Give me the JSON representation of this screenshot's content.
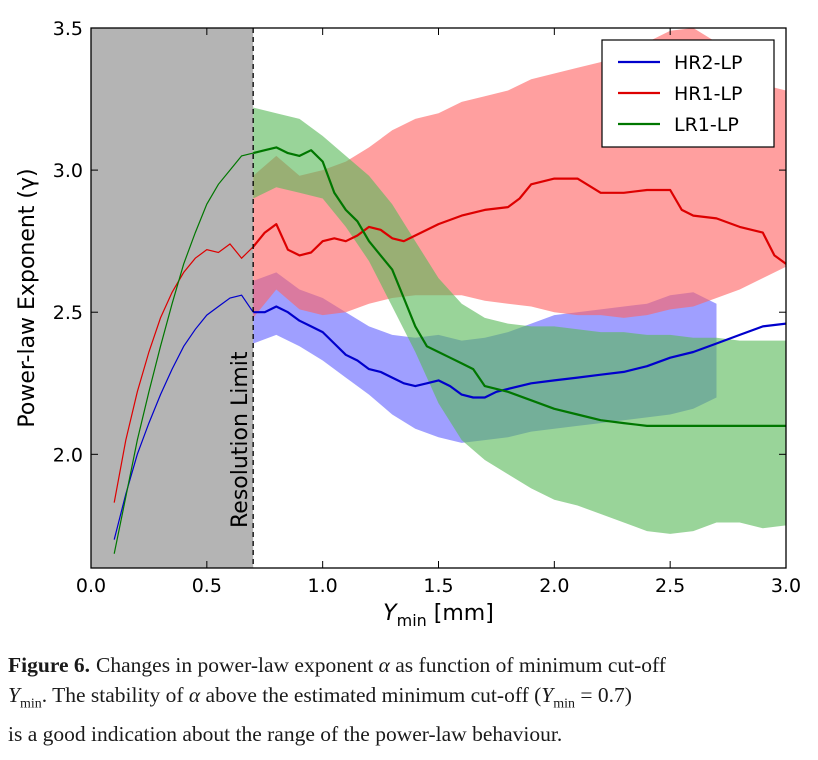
{
  "chart_data": {
    "type": "line",
    "xlabel": "Y",
    "xlabel_sub": "min",
    "xlabel_unit": "[mm]",
    "ylabel": "Power-law Exponent (γ)",
    "xlim": [
      0.0,
      3.0
    ],
    "ylim": [
      1.6,
      3.5
    ],
    "xticks": [
      "0.0",
      "0.5",
      "1.0",
      "1.5",
      "2.0",
      "2.5",
      "3.0"
    ],
    "yticks": [
      "2.0",
      "2.5",
      "3.0",
      "3.5"
    ],
    "legend_position": "top-right",
    "resolution_limit": {
      "x": 0.7,
      "label": "Resolution Limit"
    },
    "series": [
      {
        "name": "HR2-LP",
        "color": "#0000cc",
        "band_color": "#6464ff",
        "x": [
          0.1,
          0.15,
          0.2,
          0.25,
          0.3,
          0.35,
          0.4,
          0.45,
          0.5,
          0.55,
          0.6,
          0.65,
          0.7,
          0.75,
          0.8,
          0.85,
          0.9,
          0.95,
          1.0,
          1.05,
          1.1,
          1.15,
          1.2,
          1.25,
          1.3,
          1.35,
          1.4,
          1.45,
          1.5,
          1.55,
          1.6,
          1.65,
          1.7,
          1.75,
          1.8,
          1.9,
          2.0,
          2.1,
          2.2,
          2.3,
          2.4,
          2.5,
          2.6,
          2.7,
          2.8,
          2.9,
          3.0
        ],
        "y": [
          1.7,
          1.86,
          2.0,
          2.11,
          2.21,
          2.3,
          2.38,
          2.44,
          2.49,
          2.52,
          2.55,
          2.56,
          2.5,
          2.5,
          2.52,
          2.5,
          2.47,
          2.45,
          2.43,
          2.39,
          2.35,
          2.33,
          2.3,
          2.29,
          2.27,
          2.25,
          2.24,
          2.25,
          2.26,
          2.24,
          2.21,
          2.2,
          2.2,
          2.22,
          2.23,
          2.25,
          2.26,
          2.27,
          2.28,
          2.29,
          2.31,
          2.34,
          2.36,
          2.39,
          2.42,
          2.45,
          2.46
        ],
        "band_x": [
          0.7,
          0.8,
          0.9,
          1.0,
          1.1,
          1.2,
          1.3,
          1.4,
          1.5,
          1.6,
          1.7,
          1.8,
          1.9,
          2.0,
          2.1,
          2.2,
          2.3,
          2.4,
          2.5,
          2.6,
          2.7
        ],
        "band_upper": [
          2.61,
          2.64,
          2.58,
          2.55,
          2.5,
          2.45,
          2.42,
          2.41,
          2.42,
          2.4,
          2.41,
          2.43,
          2.46,
          2.49,
          2.5,
          2.51,
          2.52,
          2.53,
          2.56,
          2.57,
          2.53
        ],
        "band_lower": [
          2.39,
          2.42,
          2.38,
          2.33,
          2.27,
          2.21,
          2.14,
          2.09,
          2.06,
          2.04,
          2.05,
          2.06,
          2.08,
          2.09,
          2.1,
          2.11,
          2.12,
          2.13,
          2.14,
          2.16,
          2.2
        ]
      },
      {
        "name": "HR1-LP",
        "color": "#dd0000",
        "band_color": "#ff6464",
        "x": [
          0.1,
          0.15,
          0.2,
          0.25,
          0.3,
          0.35,
          0.4,
          0.45,
          0.5,
          0.55,
          0.6,
          0.65,
          0.7,
          0.75,
          0.8,
          0.85,
          0.9,
          0.95,
          1.0,
          1.05,
          1.1,
          1.15,
          1.2,
          1.25,
          1.3,
          1.35,
          1.4,
          1.5,
          1.6,
          1.7,
          1.8,
          1.85,
          1.9,
          2.0,
          2.1,
          2.2,
          2.3,
          2.4,
          2.5,
          2.55,
          2.6,
          2.7,
          2.8,
          2.9,
          2.95,
          3.0
        ],
        "y": [
          1.83,
          2.05,
          2.22,
          2.36,
          2.48,
          2.57,
          2.64,
          2.69,
          2.72,
          2.71,
          2.74,
          2.69,
          2.73,
          2.78,
          2.81,
          2.72,
          2.7,
          2.71,
          2.75,
          2.76,
          2.75,
          2.77,
          2.8,
          2.79,
          2.76,
          2.75,
          2.77,
          2.81,
          2.84,
          2.86,
          2.87,
          2.9,
          2.95,
          2.97,
          2.97,
          2.92,
          2.92,
          2.93,
          2.93,
          2.86,
          2.84,
          2.83,
          2.8,
          2.78,
          2.7,
          2.67
        ],
        "band_x": [
          0.7,
          0.8,
          0.9,
          1.0,
          1.1,
          1.2,
          1.3,
          1.4,
          1.5,
          1.6,
          1.7,
          1.8,
          1.9,
          2.0,
          2.1,
          2.2,
          2.3,
          2.4,
          2.5,
          2.6,
          2.7,
          2.8,
          2.9,
          3.0
        ],
        "band_upper": [
          2.98,
          3.05,
          2.98,
          3.0,
          3.03,
          3.08,
          3.14,
          3.18,
          3.2,
          3.24,
          3.26,
          3.28,
          3.32,
          3.34,
          3.36,
          3.38,
          3.42,
          3.45,
          3.49,
          3.5,
          3.45,
          3.36,
          3.3,
          3.28
        ],
        "band_lower": [
          2.48,
          2.58,
          2.51,
          2.49,
          2.5,
          2.53,
          2.55,
          2.56,
          2.56,
          2.56,
          2.54,
          2.53,
          2.52,
          2.5,
          2.49,
          2.49,
          2.48,
          2.49,
          2.51,
          2.52,
          2.55,
          2.58,
          2.62,
          2.66
        ]
      },
      {
        "name": "LR1-LP",
        "color": "#007700",
        "band_color": "#5aba5a",
        "x": [
          0.1,
          0.15,
          0.2,
          0.25,
          0.3,
          0.35,
          0.4,
          0.45,
          0.5,
          0.55,
          0.6,
          0.65,
          0.7,
          0.75,
          0.8,
          0.85,
          0.9,
          0.95,
          1.0,
          1.05,
          1.1,
          1.15,
          1.2,
          1.25,
          1.3,
          1.35,
          1.4,
          1.45,
          1.5,
          1.55,
          1.6,
          1.65,
          1.7,
          1.8,
          1.9,
          2.0,
          2.1,
          2.2,
          2.3,
          2.4,
          2.5,
          2.6,
          2.7,
          2.8,
          2.9,
          3.0
        ],
        "y": [
          1.65,
          1.85,
          2.05,
          2.22,
          2.38,
          2.53,
          2.67,
          2.78,
          2.88,
          2.95,
          3.0,
          3.05,
          3.06,
          3.07,
          3.08,
          3.06,
          3.05,
          3.07,
          3.03,
          2.92,
          2.86,
          2.82,
          2.75,
          2.7,
          2.65,
          2.55,
          2.45,
          2.38,
          2.36,
          2.34,
          2.32,
          2.3,
          2.24,
          2.22,
          2.19,
          2.16,
          2.14,
          2.12,
          2.11,
          2.1,
          2.1,
          2.1,
          2.1,
          2.1,
          2.1,
          2.1
        ],
        "band_x": [
          0.7,
          0.8,
          0.9,
          1.0,
          1.1,
          1.2,
          1.3,
          1.4,
          1.5,
          1.6,
          1.7,
          1.8,
          1.9,
          2.0,
          2.1,
          2.2,
          2.3,
          2.4,
          2.5,
          2.6,
          2.7,
          2.8,
          2.9,
          3.0
        ],
        "band_upper": [
          3.22,
          3.2,
          3.18,
          3.12,
          3.05,
          2.98,
          2.88,
          2.75,
          2.62,
          2.53,
          2.48,
          2.46,
          2.45,
          2.45,
          2.44,
          2.43,
          2.43,
          2.42,
          2.42,
          2.41,
          2.41,
          2.4,
          2.4,
          2.4
        ],
        "band_lower": [
          2.9,
          2.94,
          2.92,
          2.9,
          2.8,
          2.68,
          2.52,
          2.36,
          2.18,
          2.05,
          1.98,
          1.93,
          1.88,
          1.84,
          1.82,
          1.79,
          1.76,
          1.73,
          1.72,
          1.73,
          1.76,
          1.76,
          1.74,
          1.75
        ]
      }
    ]
  },
  "caption": {
    "figure_label": "Figure 6.",
    "line1_a": "Changes in power-law exponent ",
    "alpha": "α",
    "line1_b": " as function of minimum cut-off",
    "y_symbol": "Y",
    "y_sub": "min",
    "line2_a": ". The stability of ",
    "line2_b": " above the estimated minimum cut-off (",
    "line2_c": " = 0.7)",
    "line3": "is a good indication about the range of the power-law behaviour."
  }
}
